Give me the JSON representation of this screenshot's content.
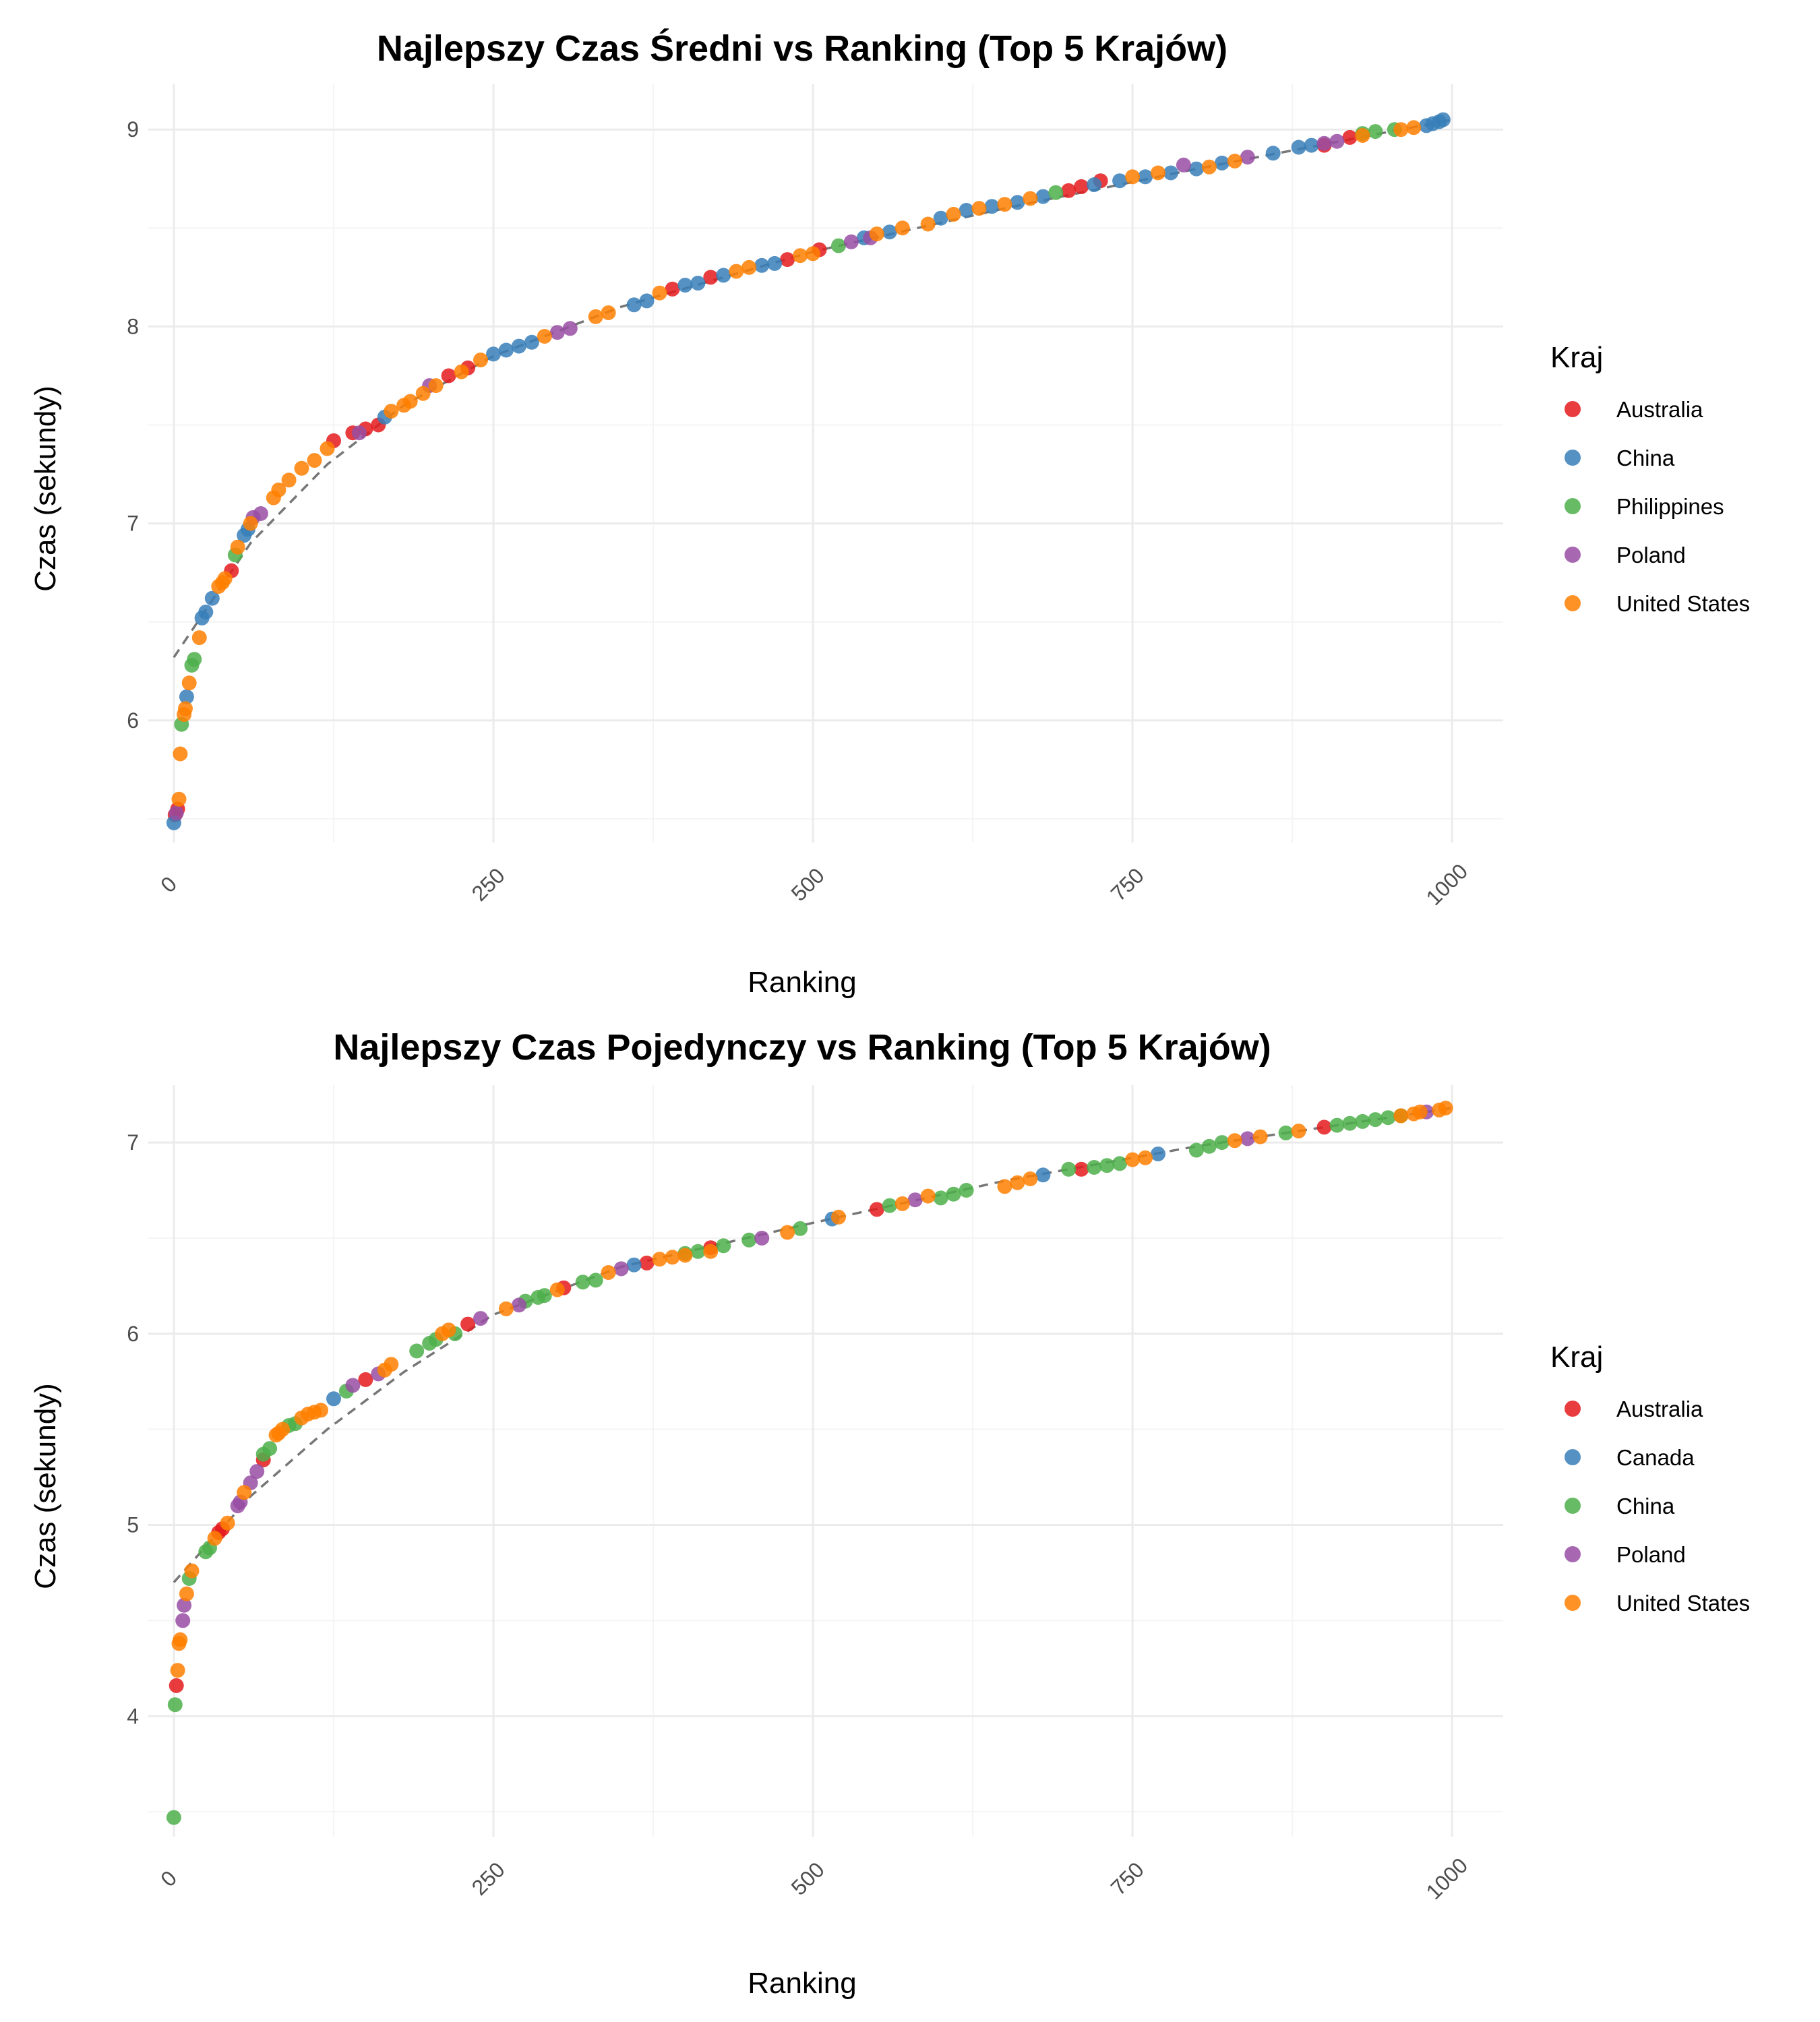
{
  "chart_data": [
    {
      "type": "scatter",
      "title": "Najlepszy Czas Średni vs Ranking (Top 5 Krajów)",
      "xlabel": "Ranking",
      "ylabel": "Czas (sekundy)",
      "xlim": [
        -20,
        1040
      ],
      "ylim": [
        5.38,
        9.23
      ],
      "x_ticks": [
        0,
        250,
        500,
        750,
        1000
      ],
      "x_tick_labels": [
        "0",
        "250",
        "500",
        "750",
        "1000"
      ],
      "y_ticks": [
        6,
        7,
        8,
        9
      ],
      "y_tick_labels": [
        "6",
        "7",
        "8",
        "9"
      ],
      "grid": true,
      "legend": {
        "title": "Kraj",
        "position": "right"
      },
      "trend_line": {
        "style": "dashed",
        "color": "#777777",
        "x": [
          0,
          60,
          120,
          180,
          250,
          350,
          500,
          650,
          800,
          1000
        ],
        "y": [
          6.32,
          6.9,
          7.3,
          7.6,
          7.85,
          8.1,
          8.38,
          8.6,
          8.8,
          9.05
        ]
      },
      "series": [
        {
          "name": "Australia",
          "color": "#e41a1c",
          "x": [
            1,
            3,
            45,
            125,
            140,
            150,
            160,
            215,
            230,
            390,
            420,
            480,
            505,
            700,
            710,
            725,
            900,
            920
          ],
          "y": [
            5.52,
            5.55,
            6.76,
            7.42,
            7.46,
            7.48,
            7.5,
            7.75,
            7.79,
            8.19,
            8.25,
            8.34,
            8.39,
            8.69,
            8.71,
            8.74,
            8.92,
            8.96
          ]
        },
        {
          "name": "China",
          "color": "#377eb8",
          "x": [
            0,
            10,
            22,
            25,
            30,
            55,
            58,
            165,
            250,
            260,
            270,
            280,
            360,
            370,
            400,
            410,
            430,
            460,
            470,
            540,
            560,
            600,
            620,
            640,
            660,
            680,
            720,
            740,
            760,
            780,
            800,
            820,
            860,
            880,
            890,
            980,
            985,
            990,
            993
          ],
          "y": [
            5.48,
            6.12,
            6.52,
            6.55,
            6.62,
            6.94,
            6.97,
            7.54,
            7.86,
            7.88,
            7.9,
            7.92,
            8.11,
            8.13,
            8.21,
            8.22,
            8.26,
            8.31,
            8.32,
            8.45,
            8.48,
            8.55,
            8.59,
            8.61,
            8.63,
            8.66,
            8.72,
            8.74,
            8.76,
            8.78,
            8.8,
            8.83,
            8.88,
            8.91,
            8.92,
            9.02,
            9.03,
            9.04,
            9.05
          ]
        },
        {
          "name": "Philippines",
          "color": "#4daf4a",
          "x": [
            6,
            14,
            16,
            48,
            520,
            690,
            930,
            940,
            955
          ],
          "y": [
            5.98,
            6.28,
            6.31,
            6.84,
            8.41,
            8.68,
            8.98,
            8.99,
            9.0
          ]
        },
        {
          "name": "Poland",
          "color": "#984ea3",
          "x": [
            2,
            62,
            68,
            145,
            200,
            300,
            310,
            530,
            545,
            790,
            840,
            900,
            910
          ],
          "y": [
            5.53,
            7.03,
            7.05,
            7.46,
            7.7,
            7.97,
            7.99,
            8.43,
            8.45,
            8.82,
            8.86,
            8.93,
            8.94
          ]
        },
        {
          "name": "United States",
          "color": "#ff7f00",
          "x": [
            4,
            5,
            8,
            9,
            12,
            20,
            35,
            38,
            40,
            50,
            60,
            78,
            82,
            90,
            100,
            110,
            120,
            170,
            180,
            185,
            195,
            205,
            225,
            240,
            290,
            330,
            340,
            380,
            440,
            450,
            490,
            500,
            550,
            570,
            590,
            610,
            630,
            650,
            670,
            750,
            770,
            810,
            830,
            930,
            960,
            970
          ],
          "y": [
            5.6,
            5.83,
            6.03,
            6.06,
            6.19,
            6.42,
            6.68,
            6.7,
            6.72,
            6.88,
            7.0,
            7.13,
            7.17,
            7.22,
            7.28,
            7.32,
            7.38,
            7.57,
            7.6,
            7.62,
            7.66,
            7.7,
            7.77,
            7.83,
            7.95,
            8.05,
            8.07,
            8.17,
            8.28,
            8.3,
            8.36,
            8.37,
            8.47,
            8.5,
            8.52,
            8.57,
            8.6,
            8.62,
            8.65,
            8.76,
            8.78,
            8.81,
            8.84,
            8.97,
            9.0,
            9.01
          ]
        }
      ]
    },
    {
      "type": "scatter",
      "title": "Najlepszy Czas Pojedynczy vs Ranking (Top 5 Krajów)",
      "xlabel": "Ranking",
      "ylabel": "Czas (sekundy)",
      "xlim": [
        -20,
        1040
      ],
      "ylim": [
        3.37,
        7.3
      ],
      "x_ticks": [
        0,
        250,
        500,
        750,
        1000
      ],
      "x_tick_labels": [
        "0",
        "250",
        "500",
        "750",
        "1000"
      ],
      "y_ticks": [
        4,
        5,
        6,
        7
      ],
      "y_tick_labels": [
        "4",
        "5",
        "6",
        "7"
      ],
      "grid": true,
      "legend": {
        "title": "Kraj",
        "position": "right"
      },
      "trend_line": {
        "style": "dashed",
        "color": "#777777",
        "x": [
          0,
          60,
          120,
          180,
          250,
          350,
          500,
          650,
          800,
          1000
        ],
        "y": [
          4.7,
          5.15,
          5.5,
          5.8,
          6.1,
          6.35,
          6.58,
          6.8,
          6.98,
          7.18
        ]
      },
      "series": [
        {
          "name": "Australia",
          "color": "#e41a1c",
          "x": [
            2,
            35,
            38,
            70,
            150,
            230,
            305,
            370,
            420,
            550,
            710,
            900
          ],
          "y": [
            4.16,
            4.96,
            4.98,
            5.34,
            5.76,
            6.05,
            6.24,
            6.37,
            6.45,
            6.65,
            6.86,
            7.08
          ]
        },
        {
          "name": "Canada",
          "color": "#377eb8",
          "x": [
            125,
            360,
            515,
            680,
            770
          ],
          "y": [
            5.66,
            6.36,
            6.6,
            6.83,
            6.94
          ]
        },
        {
          "name": "China",
          "color": "#4daf4a",
          "x": [
            0,
            1,
            12,
            25,
            28,
            70,
            75,
            90,
            95,
            135,
            190,
            200,
            205,
            220,
            275,
            285,
            290,
            320,
            330,
            400,
            410,
            430,
            450,
            490,
            560,
            600,
            610,
            620,
            700,
            720,
            730,
            740,
            800,
            810,
            820,
            870,
            910,
            920,
            930,
            940,
            950,
            960
          ],
          "y": [
            3.47,
            4.06,
            4.72,
            4.86,
            4.88,
            5.37,
            5.4,
            5.52,
            5.53,
            5.7,
            5.91,
            5.95,
            5.97,
            6.0,
            6.17,
            6.19,
            6.2,
            6.27,
            6.28,
            6.42,
            6.43,
            6.46,
            6.49,
            6.55,
            6.67,
            6.71,
            6.73,
            6.75,
            6.86,
            6.87,
            6.88,
            6.89,
            6.96,
            6.98,
            7.0,
            7.05,
            7.09,
            7.1,
            7.11,
            7.12,
            7.13,
            7.14
          ]
        },
        {
          "name": "Poland",
          "color": "#984ea3",
          "x": [
            7,
            8,
            50,
            52,
            60,
            65,
            140,
            160,
            240,
            270,
            350,
            460,
            580,
            840,
            980
          ],
          "y": [
            4.5,
            4.58,
            5.1,
            5.12,
            5.22,
            5.28,
            5.73,
            5.79,
            6.08,
            6.15,
            6.34,
            6.5,
            6.7,
            7.02,
            7.16
          ]
        },
        {
          "name": "United States",
          "color": "#ff7f00",
          "x": [
            3,
            4,
            5,
            10,
            14,
            32,
            42,
            55,
            80,
            82,
            85,
            100,
            105,
            110,
            115,
            165,
            170,
            210,
            215,
            260,
            300,
            340,
            380,
            390,
            400,
            420,
            480,
            520,
            570,
            590,
            650,
            660,
            670,
            750,
            760,
            830,
            850,
            880,
            960,
            970,
            975,
            990,
            995
          ],
          "y": [
            4.24,
            4.38,
            4.4,
            4.64,
            4.76,
            4.93,
            5.01,
            5.17,
            5.47,
            5.48,
            5.5,
            5.56,
            5.58,
            5.59,
            5.6,
            5.81,
            5.84,
            6.0,
            6.02,
            6.13,
            6.23,
            6.32,
            6.39,
            6.4,
            6.41,
            6.43,
            6.53,
            6.61,
            6.68,
            6.72,
            6.77,
            6.79,
            6.81,
            6.91,
            6.92,
            7.01,
            7.03,
            7.06,
            7.14,
            7.15,
            7.16,
            7.17,
            7.18
          ]
        }
      ]
    }
  ]
}
